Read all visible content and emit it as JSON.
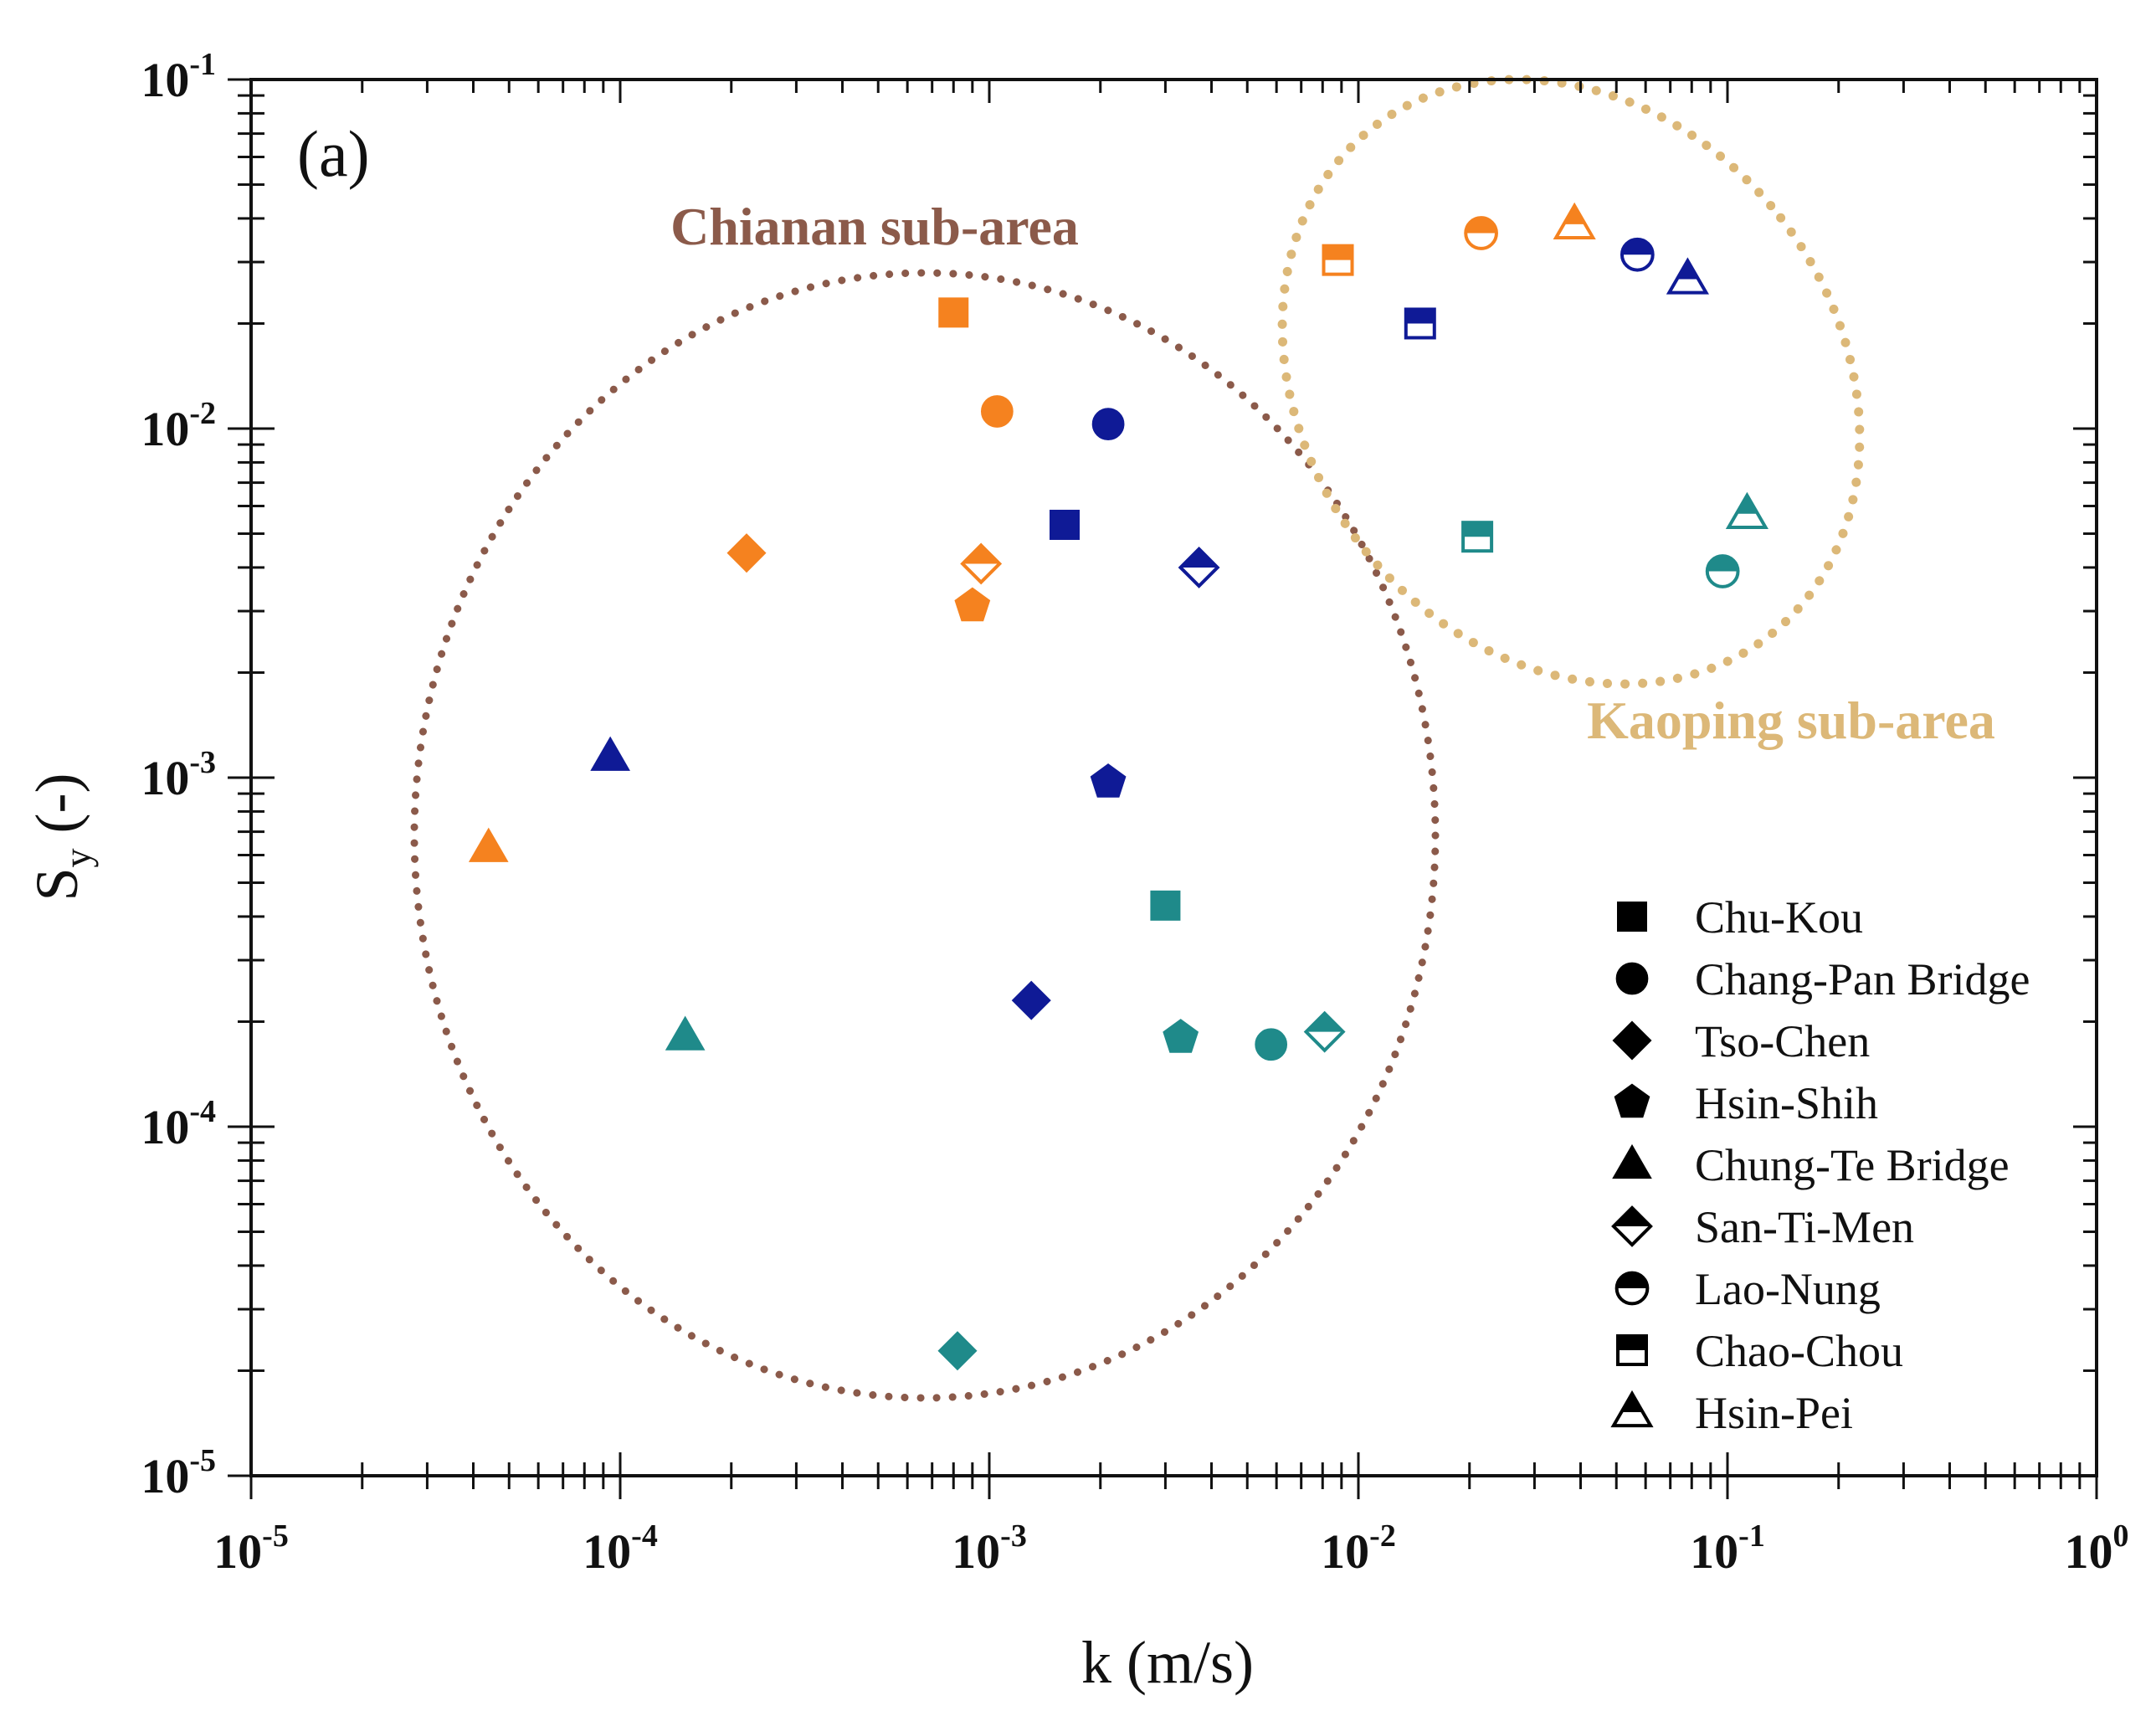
{
  "chart_data": {
    "type": "scatter",
    "panel_label": "(a)",
    "xlabel": "k (m/s)",
    "ylabel_base": "S",
    "ylabel_sub": "y",
    "ylabel_suffix": " (-)",
    "x_scale": "log",
    "y_scale": "log",
    "xlim": [
      1e-05,
      1
    ],
    "ylim": [
      1e-05,
      0.1
    ],
    "x_ticks": [
      {
        "base": "10",
        "exp": "-5",
        "value": 1e-05
      },
      {
        "base": "10",
        "exp": "-4",
        "value": 0.0001
      },
      {
        "base": "10",
        "exp": "-3",
        "value": 0.001
      },
      {
        "base": "10",
        "exp": "-2",
        "value": 0.01
      },
      {
        "base": "10",
        "exp": "-1",
        "value": 0.1
      },
      {
        "base": "10",
        "exp": "0",
        "value": 1
      }
    ],
    "y_ticks": [
      {
        "base": "10",
        "exp": "-5",
        "value": 1e-05
      },
      {
        "base": "10",
        "exp": "-4",
        "value": 0.0001
      },
      {
        "base": "10",
        "exp": "-3",
        "value": 0.001
      },
      {
        "base": "10",
        "exp": "-2",
        "value": 0.01
      },
      {
        "base": "10",
        "exp": "-1",
        "value": 0.1
      }
    ],
    "colors": {
      "orange": "#f5821f",
      "navy": "#0f1a96",
      "teal": "#1f8a8a",
      "chianan": "#8b5a4a",
      "kaoping": "#dcb878"
    },
    "regions": [
      {
        "label": "Chianan sub-area",
        "color": "#8b5a4a"
      },
      {
        "label": "Kaoping sub-area",
        "color": "#dcb878"
      }
    ],
    "legend": {
      "placement": "lower-right",
      "entries": [
        {
          "label": "Chu-Kou",
          "marker": "square",
          "fill": "full"
        },
        {
          "label": "Chang-Pan Bridge",
          "marker": "circle",
          "fill": "full"
        },
        {
          "label": "Tso-Chen",
          "marker": "diamond",
          "fill": "full"
        },
        {
          "label": "Hsin-Shih",
          "marker": "pentagon",
          "fill": "full"
        },
        {
          "label": "Chung-Te Bridge",
          "marker": "triangle",
          "fill": "full"
        },
        {
          "label": "San-Ti-Men",
          "marker": "diamond",
          "fill": "half"
        },
        {
          "label": "Lao-Nung",
          "marker": "circle",
          "fill": "half"
        },
        {
          "label": "Chao-Chou",
          "marker": "square",
          "fill": "half"
        },
        {
          "label": "Hsin-Pei",
          "marker": "triangle",
          "fill": "half"
        }
      ]
    },
    "series": [
      {
        "name": "Chu-Kou",
        "points": [
          {
            "x": 0.0008,
            "y": 0.0215,
            "color": "orange"
          },
          {
            "x": 0.0016,
            "y": 0.0053,
            "color": "navy"
          },
          {
            "x": 0.003,
            "y": 0.00043,
            "color": "teal"
          }
        ]
      },
      {
        "name": "Chang-Pan Bridge",
        "points": [
          {
            "x": 0.00105,
            "y": 0.0112,
            "color": "orange"
          },
          {
            "x": 0.0021,
            "y": 0.0103,
            "color": "navy"
          },
          {
            "x": 0.0058,
            "y": 0.000172,
            "color": "teal"
          }
        ]
      },
      {
        "name": "Tso-Chen",
        "points": [
          {
            "x": 0.00022,
            "y": 0.0044,
            "color": "orange"
          },
          {
            "x": 0.0013,
            "y": 0.00023,
            "color": "navy"
          },
          {
            "x": 0.00082,
            "y": 2.28e-05,
            "color": "teal"
          }
        ]
      },
      {
        "name": "Hsin-Shih",
        "points": [
          {
            "x": 0.0009,
            "y": 0.0031,
            "color": "orange"
          },
          {
            "x": 0.0021,
            "y": 0.00097,
            "color": "navy"
          },
          {
            "x": 0.0033,
            "y": 0.00018,
            "color": "teal"
          }
        ]
      },
      {
        "name": "Chung-Te Bridge",
        "points": [
          {
            "x": 4.4e-05,
            "y": 0.00063,
            "color": "orange"
          },
          {
            "x": 9.4e-05,
            "y": 0.00115,
            "color": "navy"
          },
          {
            "x": 0.00015,
            "y": 0.000182,
            "color": "teal"
          }
        ]
      },
      {
        "name": "San-Ti-Men",
        "points": [
          {
            "x": 0.00095,
            "y": 0.0041,
            "color": "orange"
          },
          {
            "x": 0.0037,
            "y": 0.004,
            "color": "navy"
          },
          {
            "x": 0.0081,
            "y": 0.000187,
            "color": "teal"
          }
        ]
      },
      {
        "name": "Lao-Nung",
        "points": [
          {
            "x": 0.0215,
            "y": 0.0363,
            "color": "orange"
          },
          {
            "x": 0.057,
            "y": 0.0315,
            "color": "navy"
          },
          {
            "x": 0.097,
            "y": 0.0039,
            "color": "teal"
          }
        ]
      },
      {
        "name": "Chao-Chou",
        "points": [
          {
            "x": 0.0088,
            "y": 0.0304,
            "color": "orange"
          },
          {
            "x": 0.0147,
            "y": 0.02,
            "color": "navy"
          },
          {
            "x": 0.021,
            "y": 0.0049,
            "color": "teal"
          }
        ]
      },
      {
        "name": "Hsin-Pei",
        "points": [
          {
            "x": 0.0385,
            "y": 0.0385,
            "color": "orange"
          },
          {
            "x": 0.078,
            "y": 0.0268,
            "color": "navy"
          },
          {
            "x": 0.113,
            "y": 0.0057,
            "color": "teal"
          }
        ]
      }
    ]
  }
}
